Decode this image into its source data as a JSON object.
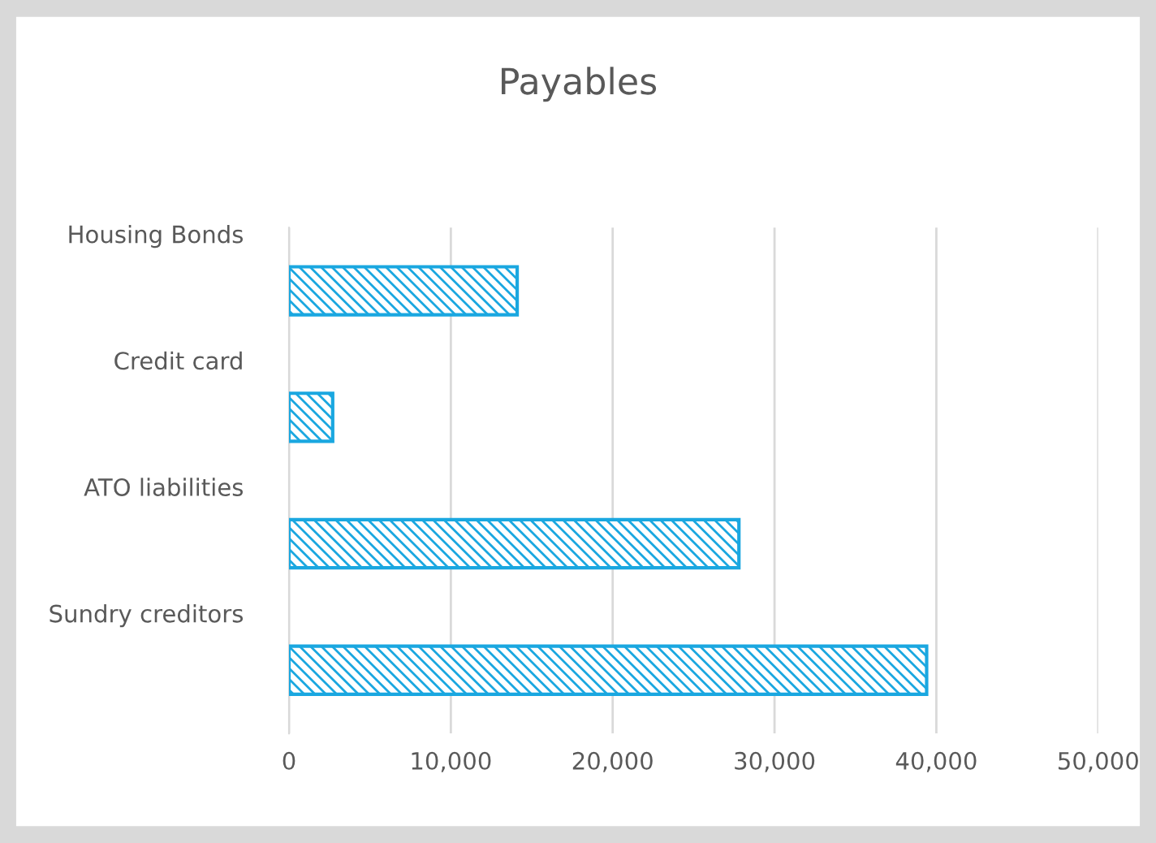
{
  "chart_data": {
    "type": "bar",
    "orientation": "horizontal",
    "title": "Payables",
    "categories": [
      "Housing Bonds",
      "Credit card",
      "ATO liabilities",
      "Sundry creditors"
    ],
    "values": [
      14100,
      2700,
      27800,
      39400
    ],
    "color": "#1aa7e0",
    "xlim": [
      0,
      50000
    ],
    "xticks": [
      {
        "value": 0,
        "label": "0"
      },
      {
        "value": 10000,
        "label": "10,000"
      },
      {
        "value": 20000,
        "label": "20,000"
      },
      {
        "value": 30000,
        "label": "30,000"
      },
      {
        "value": 40000,
        "label": "40,000"
      },
      {
        "value": 50000,
        "label": "50,000"
      }
    ],
    "grid": "x"
  }
}
